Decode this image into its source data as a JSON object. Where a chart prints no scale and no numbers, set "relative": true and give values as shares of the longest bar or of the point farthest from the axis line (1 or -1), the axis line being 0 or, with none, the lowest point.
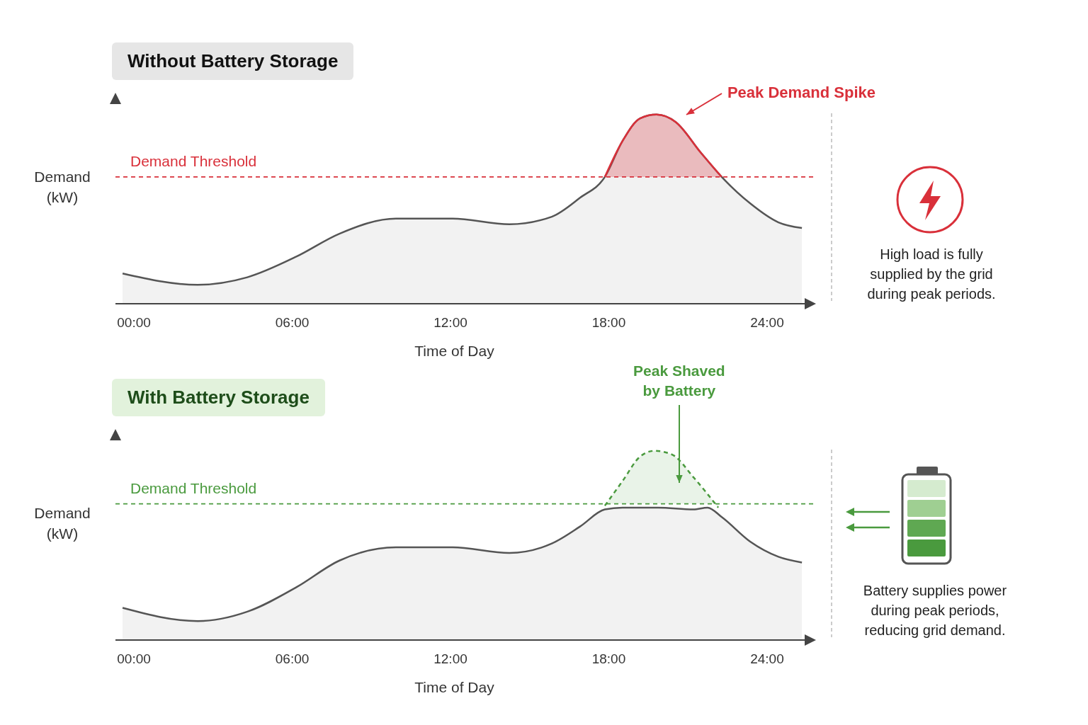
{
  "chart_data": [
    {
      "type": "area",
      "title": "Without Battery Storage",
      "xlabel": "Time of Day",
      "ylabel": "Demand (kW)",
      "relative": true,
      "xlim": [
        -0.7,
        25.8
      ],
      "xticks": [
        {
          "value": 0,
          "label": "00:00"
        },
        {
          "value": 6,
          "label": "06:00"
        },
        {
          "value": 12,
          "label": "12:00"
        },
        {
          "value": 18,
          "label": "18:00"
        },
        {
          "value": 24,
          "label": "24:00"
        }
      ],
      "marker": "none",
      "series": [
        {
          "color": "#555555",
          "line_style": "solid",
          "x": [
            -0.43,
            2.42,
            4.3,
            6.17,
            7.79,
            9.93,
            12.08,
            14.23,
            15.84,
            16.91,
            17.85,
            18.52,
            19.19,
            19.81,
            20.54,
            21.48,
            22.28,
            23.36,
            24.43,
            25.32
          ],
          "values": [
            0.16,
            0.1,
            0.14,
            0.25,
            0.37,
            0.45,
            0.45,
            0.42,
            0.46,
            0.56,
            0.67,
            0.86,
            0.98,
            1.0,
            0.96,
            0.8,
            0.67,
            0.53,
            0.43,
            0.4
          ]
        },
        {
          "color": "#d9303a",
          "line_style": "solid",
          "x": [
            17.85,
            18.52,
            19.19,
            19.81,
            20.54,
            21.48,
            22.28
          ],
          "values": [
            0.67,
            0.86,
            0.98,
            1.0,
            0.96,
            0.8,
            0.67
          ]
        }
      ],
      "ref_lines": [
        {
          "axis": "y",
          "value": 0.67,
          "label": "Demand Threshold",
          "color": "#d9303a",
          "line_style": "dashed"
        }
      ],
      "annotations": [
        "Peak Demand Spike",
        "High load is fully supplied by the grid during peak periods."
      ]
    },
    {
      "type": "area",
      "title": "With Battery Storage",
      "xlabel": "Time of Day",
      "ylabel": "Demand (kW)",
      "relative": true,
      "xlim": [
        -0.7,
        25.8
      ],
      "xticks": [
        {
          "value": 0,
          "label": "00:00"
        },
        {
          "value": 6,
          "label": "06:00"
        },
        {
          "value": 12,
          "label": "12:00"
        },
        {
          "value": 18,
          "label": "18:00"
        },
        {
          "value": 24,
          "label": "24:00"
        }
      ],
      "marker": "none",
      "series": [
        {
          "color": "#555555",
          "line_style": "solid",
          "x": [
            -0.43,
            2.42,
            4.3,
            6.17,
            7.79,
            9.93,
            12.08,
            14.23,
            15.84,
            16.91,
            17.85,
            18.52,
            19.87,
            21.21,
            21.74,
            22.28,
            23.36,
            24.43,
            25.32
          ],
          "values": [
            0.17,
            0.1,
            0.15,
            0.28,
            0.42,
            0.49,
            0.49,
            0.46,
            0.51,
            0.6,
            0.69,
            0.7,
            0.7,
            0.69,
            0.7,
            0.65,
            0.52,
            0.44,
            0.41
          ]
        },
        {
          "color": "#4a9a3e",
          "line_style": "dashed",
          "x": [
            17.85,
            18.52,
            19.19,
            19.73,
            20.4,
            21.21,
            22.15
          ],
          "values": [
            0.71,
            0.84,
            0.97,
            1.0,
            0.98,
            0.86,
            0.7
          ]
        }
      ],
      "ref_lines": [
        {
          "axis": "y",
          "value": 0.72,
          "label": "Demand Threshold",
          "color": "#4a9a3e",
          "line_style": "dashed"
        }
      ],
      "annotations": [
        "Peak Shaved by Battery",
        "Battery supplies power during peak periods, reducing grid demand."
      ]
    }
  ]
}
